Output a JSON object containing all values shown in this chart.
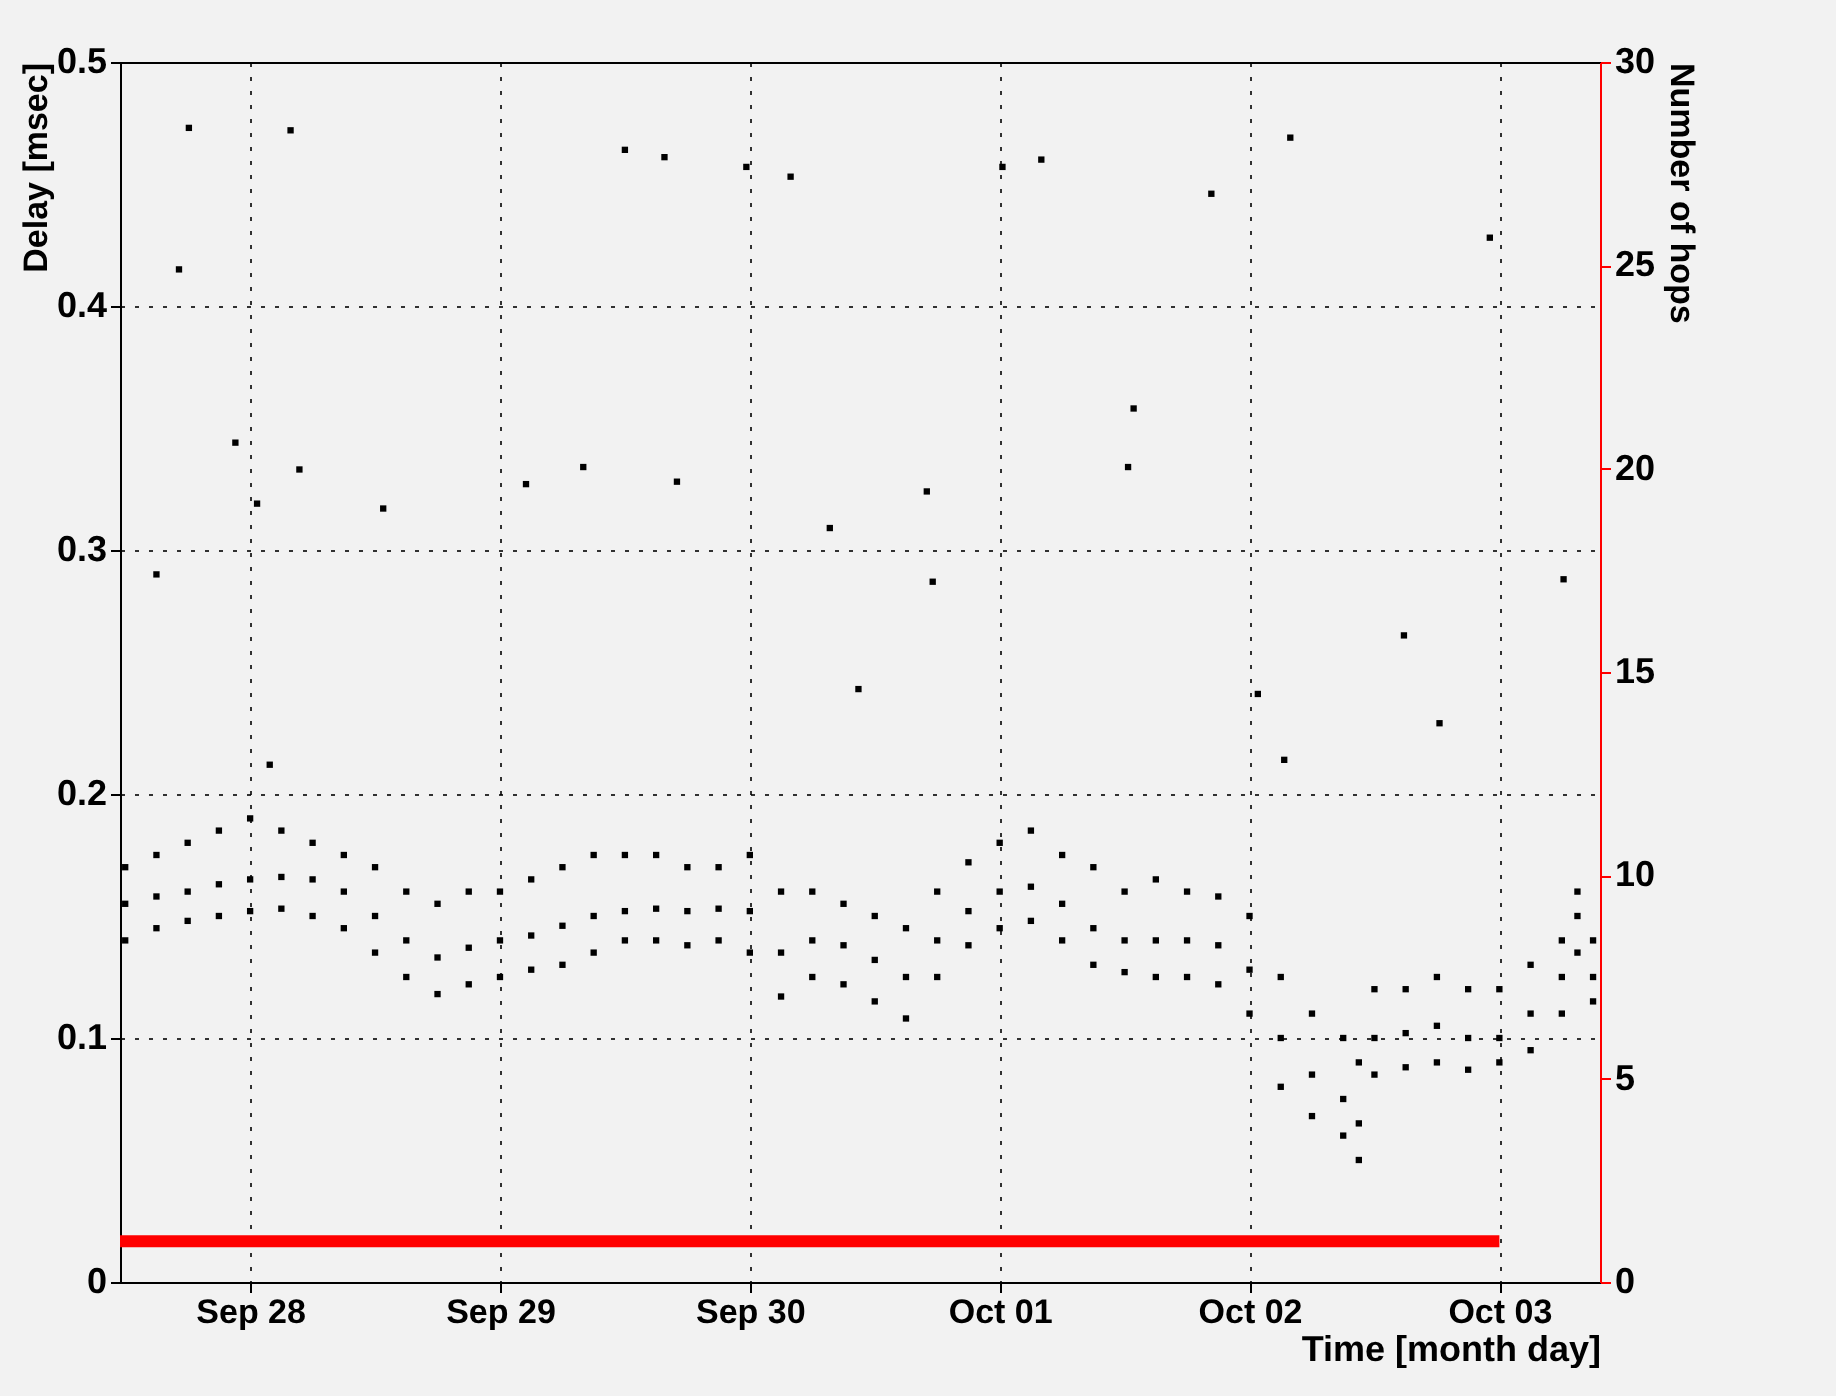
{
  "chart_data": {
    "type": "scatter",
    "xlabel": "Time [month day]",
    "ylabel": "Delay [msec]",
    "y2label": "Number of hops",
    "xlim": [
      "--09-27T11:30",
      "--10-03T09:40"
    ],
    "xticks": [
      {
        "value": "--09-28",
        "label": "Sep 28"
      },
      {
        "value": "--09-29",
        "label": "Sep 29"
      },
      {
        "value": "--09-30",
        "label": "Sep 30"
      },
      {
        "value": "--10-01",
        "label": "Oct 01"
      },
      {
        "value": "--10-02",
        "label": "Oct 02"
      },
      {
        "value": "--10-03",
        "label": "Oct 03"
      }
    ],
    "ylim": [
      0,
      0.5
    ],
    "yticks": [
      0,
      0.1,
      0.2,
      0.3,
      0.4,
      0.5
    ],
    "y2lim": [
      0,
      30
    ],
    "y2ticks": [
      0,
      5,
      10,
      15,
      20,
      25,
      30
    ],
    "grid": true,
    "series": [
      {
        "type": "scatter",
        "marker": "square",
        "color": "#000000",
        "x": [
          "--09-27T12:00",
          "--09-27T12:00",
          "--09-27T12:00",
          "--09-27T15:00",
          "--09-27T15:00",
          "--09-27T15:00",
          "--09-27T18:00",
          "--09-27T18:00",
          "--09-27T18:00",
          "--09-27T21:00",
          "--09-27T21:00",
          "--09-27T21:00",
          "--09-28T00:00",
          "--09-28T00:00",
          "--09-28T00:00",
          "--09-28T03:00",
          "--09-28T03:00",
          "--09-28T03:00",
          "--09-28T06:00",
          "--09-28T06:00",
          "--09-28T06:00",
          "--09-28T09:00",
          "--09-28T09:00",
          "--09-28T09:00",
          "--09-28T12:00",
          "--09-28T12:00",
          "--09-28T12:00",
          "--09-28T15:00",
          "--09-28T15:00",
          "--09-28T15:00",
          "--09-28T18:00",
          "--09-28T18:00",
          "--09-28T18:00",
          "--09-28T21:00",
          "--09-28T21:00",
          "--09-28T21:00",
          "--09-29T00:00",
          "--09-29T00:00",
          "--09-29T00:00",
          "--09-29T03:00",
          "--09-29T03:00",
          "--09-29T03:00",
          "--09-29T06:00",
          "--09-29T06:00",
          "--09-29T06:00",
          "--09-29T09:00",
          "--09-29T09:00",
          "--09-29T09:00",
          "--09-29T12:00",
          "--09-29T12:00",
          "--09-29T12:00",
          "--09-29T15:00",
          "--09-29T15:00",
          "--09-29T15:00",
          "--09-29T18:00",
          "--09-29T18:00",
          "--09-29T18:00",
          "--09-29T21:00",
          "--09-29T21:00",
          "--09-29T21:00",
          "--09-30T00:00",
          "--09-30T00:00",
          "--09-30T00:00",
          "--09-30T03:00",
          "--09-30T03:00",
          "--09-30T03:00",
          "--09-30T06:00",
          "--09-30T06:00",
          "--09-30T06:00",
          "--09-30T09:00",
          "--09-30T09:00",
          "--09-30T09:00",
          "--09-30T12:00",
          "--09-30T12:00",
          "--09-30T12:00",
          "--09-30T15:00",
          "--09-30T15:00",
          "--09-30T15:00",
          "--09-30T18:00",
          "--09-30T18:00",
          "--09-30T18:00",
          "--09-30T21:00",
          "--09-30T21:00",
          "--09-30T21:00",
          "--10-01T00:00",
          "--10-01T00:00",
          "--10-01T00:00",
          "--10-01T03:00",
          "--10-01T03:00",
          "--10-01T03:00",
          "--10-01T06:00",
          "--10-01T06:00",
          "--10-01T06:00",
          "--10-01T09:00",
          "--10-01T09:00",
          "--10-01T09:00",
          "--10-01T12:00",
          "--10-01T12:00",
          "--10-01T12:00",
          "--10-01T15:00",
          "--10-01T15:00",
          "--10-01T15:00",
          "--10-01T18:00",
          "--10-01T18:00",
          "--10-01T18:00",
          "--10-01T21:00",
          "--10-01T21:00",
          "--10-01T21:00",
          "--10-02T00:00",
          "--10-02T00:00",
          "--10-02T00:00",
          "--10-02T03:00",
          "--10-02T03:00",
          "--10-02T03:00",
          "--10-02T06:00",
          "--10-02T06:00",
          "--10-02T06:00",
          "--10-02T09:00",
          "--10-02T09:00",
          "--10-02T09:00",
          "--10-02T10:30",
          "--10-02T10:30",
          "--10-02T10:30",
          "--10-02T12:00",
          "--10-02T12:00",
          "--10-02T12:00",
          "--10-02T15:00",
          "--10-02T15:00",
          "--10-02T15:00",
          "--10-02T18:00",
          "--10-02T18:00",
          "--10-02T18:00",
          "--10-02T21:00",
          "--10-02T21:00",
          "--10-02T21:00",
          "--10-03T00:00",
          "--10-03T00:00",
          "--10-03T00:00",
          "--10-03T03:00",
          "--10-03T03:00",
          "--10-03T03:00",
          "--10-03T06:00",
          "--10-03T06:00",
          "--10-03T06:00",
          "--10-03T07:30",
          "--10-03T07:30",
          "--10-03T07:30",
          "--10-03T09:00",
          "--10-03T09:00",
          "--10-03T09:00",
          "--09-27T18:07",
          "--09-27T17:10",
          "--09-28T03:53",
          "--09-29T12:00",
          "--09-29T15:48",
          "--09-29T23:40",
          "--09-30T03:55",
          "--10-01T00:16",
          "--10-01T04:00",
          "--10-01T20:20",
          "--10-02T03:55",
          "--10-02T23:05",
          "--09-27T22:35",
          "--09-28T00:40",
          "--09-28T04:44",
          "--09-28T12:47",
          "--09-29T02:30",
          "--09-29T08:00",
          "--09-29T17:00",
          "--09-30T07:41",
          "--09-30T10:26",
          "--09-30T17:00",
          "--09-30T17:34",
          "--10-01T12:52",
          "--10-01T12:20",
          "--10-02T00:48",
          "--10-02T14:50",
          "--10-02T18:15",
          "--10-02T03:20",
          "--10-03T06:10",
          "--09-27T15:00",
          "--09-28T01:53"
        ],
        "values": [
          0.155,
          0.14,
          0.17,
          0.158,
          0.145,
          0.175,
          0.16,
          0.148,
          0.18,
          0.163,
          0.15,
          0.185,
          0.165,
          0.152,
          0.19,
          0.166,
          0.153,
          0.185,
          0.165,
          0.15,
          0.18,
          0.16,
          0.145,
          0.175,
          0.15,
          0.135,
          0.17,
          0.14,
          0.125,
          0.16,
          0.133,
          0.118,
          0.155,
          0.137,
          0.122,
          0.16,
          0.14,
          0.125,
          0.16,
          0.142,
          0.128,
          0.165,
          0.146,
          0.13,
          0.17,
          0.15,
          0.135,
          0.175,
          0.152,
          0.14,
          0.175,
          0.153,
          0.14,
          0.175,
          0.152,
          0.138,
          0.17,
          0.153,
          0.14,
          0.17,
          0.152,
          0.135,
          0.175,
          0.135,
          0.117,
          0.16,
          0.14,
          0.125,
          0.16,
          0.138,
          0.122,
          0.155,
          0.132,
          0.115,
          0.15,
          0.125,
          0.108,
          0.145,
          0.14,
          0.125,
          0.16,
          0.152,
          0.138,
          0.172,
          0.16,
          0.145,
          0.18,
          0.162,
          0.148,
          0.185,
          0.155,
          0.14,
          0.175,
          0.145,
          0.13,
          0.17,
          0.14,
          0.127,
          0.16,
          0.14,
          0.125,
          0.165,
          0.14,
          0.125,
          0.16,
          0.138,
          0.122,
          0.158,
          0.128,
          0.11,
          0.15,
          0.1,
          0.08,
          0.125,
          0.085,
          0.068,
          0.11,
          0.075,
          0.06,
          0.1,
          0.065,
          0.05,
          0.09,
          0.1,
          0.085,
          0.12,
          0.102,
          0.088,
          0.12,
          0.105,
          0.09,
          0.125,
          0.1,
          0.087,
          0.12,
          0.1,
          0.09,
          0.12,
          0.11,
          0.095,
          0.13,
          0.125,
          0.11,
          0.14,
          0.15,
          0.135,
          0.16,
          0.125,
          0.115,
          0.14,
          0.473,
          0.415,
          0.472,
          0.464,
          0.461,
          0.457,
          0.453,
          0.457,
          0.46,
          0.446,
          0.469,
          0.428,
          0.344,
          0.319,
          0.333,
          0.317,
          0.327,
          0.334,
          0.328,
          0.309,
          0.243,
          0.324,
          0.287,
          0.358,
          0.334,
          0.241,
          0.265,
          0.229,
          0.214,
          0.288,
          0.29,
          0.212
        ]
      },
      {
        "type": "line",
        "marker": "none",
        "axis": "y2",
        "color": "#ff0000",
        "x": [
          "--09-27T11:30",
          "--10-03T00:00"
        ],
        "values": [
          1,
          1
        ]
      }
    ]
  }
}
